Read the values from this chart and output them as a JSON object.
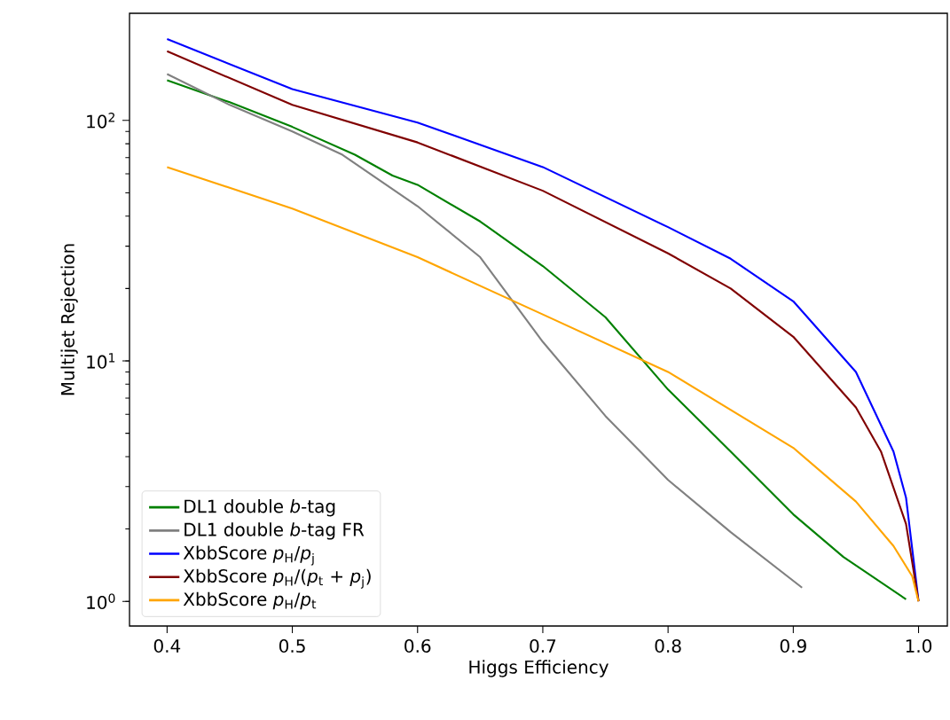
{
  "chart_data": {
    "type": "line",
    "xlabel": "Higgs Efficiency",
    "ylabel": "Multijet Rejection",
    "log": "y",
    "legend": "bottom left",
    "grid": false,
    "marker": "none",
    "line_style": "solid",
    "xlim": [
      0.37,
      1.023
    ],
    "ylim": [
      0.79,
      279
    ],
    "xticks": [
      {
        "value": 0.4,
        "label": "0.4"
      },
      {
        "value": 0.5,
        "label": "0.5"
      },
      {
        "value": 0.6,
        "label": "0.6"
      },
      {
        "value": 0.7,
        "label": "0.7"
      },
      {
        "value": 0.8,
        "label": "0.8"
      },
      {
        "value": 0.9,
        "label": "0.9"
      },
      {
        "value": 1.0,
        "label": "1.0"
      }
    ],
    "yticks": [
      {
        "value": 1,
        "label": "10$^{0}$"
      },
      {
        "value": 10,
        "label": "10$^{1}$"
      },
      {
        "value": 100,
        "label": "10$^{2}$"
      }
    ],
    "series": [
      {
        "name": "DL1 double *b*-tag",
        "color": "#008000",
        "x": [
          0.4,
          0.45,
          0.5,
          0.55,
          0.58,
          0.6,
          0.65,
          0.7,
          0.75,
          0.8,
          0.85,
          0.9,
          0.94,
          0.99
        ],
        "values": [
          147,
          119,
          94,
          72,
          59,
          54,
          38,
          24.8,
          15.2,
          7.6,
          4.2,
          2.3,
          1.53,
          1.02
        ]
      },
      {
        "name": "DL1 double *b*-tag FR",
        "color": "#808080",
        "x": [
          0.4,
          0.45,
          0.5,
          0.54,
          0.6,
          0.65,
          0.7,
          0.75,
          0.8,
          0.85,
          0.907
        ],
        "values": [
          156,
          116,
          90,
          72,
          44,
          27,
          12,
          5.9,
          3.2,
          1.94,
          1.14
        ]
      },
      {
        "name": "XbbScore *p*$_{H}$/*p*$_{j}$",
        "color": "#0000ff",
        "x": [
          0.4,
          0.5,
          0.6,
          0.7,
          0.8,
          0.85,
          0.9,
          0.95,
          0.98,
          0.99,
          1.0
        ],
        "values": [
          218,
          135,
          98,
          64,
          36,
          26.6,
          17.7,
          9,
          4.2,
          2.7,
          1
        ]
      },
      {
        "name": "XbbScore *p*$_{H}$/(*p*$_{t}$ + *p*$_{j}$)",
        "color": "#800000",
        "x": [
          0.4,
          0.5,
          0.6,
          0.7,
          0.8,
          0.85,
          0.9,
          0.95,
          0.97,
          0.99,
          1.0
        ],
        "values": [
          194,
          116,
          81,
          51,
          28,
          20,
          12.6,
          6.4,
          4.2,
          2.1,
          1
        ]
      },
      {
        "name": "XbbScore *p*$_{H}$/*p*$_{t}$",
        "color": "#ffa500",
        "x": [
          0.4,
          0.5,
          0.6,
          0.7,
          0.8,
          0.9,
          0.95,
          0.98,
          0.995,
          1.0
        ],
        "values": [
          64,
          43,
          27,
          15.6,
          9,
          4.35,
          2.6,
          1.7,
          1.27,
          1
        ]
      }
    ]
  }
}
